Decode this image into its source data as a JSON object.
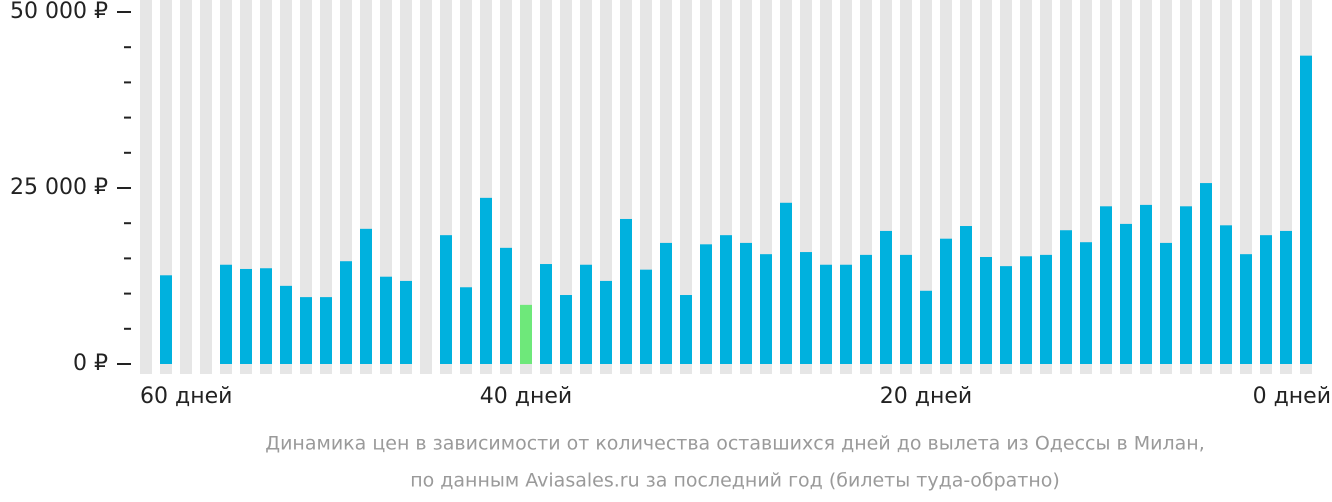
{
  "chart_data": {
    "type": "bar",
    "caption": [
      "Динамика цен в зависимости от количества оставшихся дней до вылета из Одессы в Милан,",
      "по данным Aviasales.ru за последний год (билеты туда-обратно)"
    ],
    "categories": [
      "60 дней",
      null,
      null,
      null,
      null,
      null,
      null,
      null,
      null,
      null,
      null,
      null,
      null,
      null,
      null,
      null,
      null,
      null,
      "40 дней",
      null,
      null,
      null,
      null,
      null,
      null,
      null,
      null,
      null,
      null,
      null,
      null,
      null,
      null,
      null,
      null,
      null,
      null,
      null,
      "20 дней",
      null,
      null,
      null,
      null,
      null,
      null,
      null,
      null,
      null,
      null,
      null,
      null,
      null,
      null,
      null,
      null,
      null,
      null,
      "0 дней"
    ],
    "values": [
      12600,
      null,
      null,
      14100,
      13500,
      13600,
      11100,
      9500,
      9500,
      14600,
      19200,
      12400,
      11800,
      null,
      18300,
      10900,
      23600,
      16500,
      8400,
      14200,
      9800,
      14100,
      11800,
      20600,
      13400,
      17200,
      9800,
      17000,
      18300,
      17200,
      15600,
      22900,
      15900,
      14100,
      14100,
      15500,
      18900,
      15500,
      10400,
      17800,
      19600,
      15200,
      13900,
      15300,
      15500,
      19000,
      17300,
      22400,
      19900,
      22600,
      17200,
      22400,
      25700,
      19700,
      15600,
      18300,
      18900,
      43800
    ],
    "color": "#00b1de",
    "highlight": {
      "index": 18,
      "color": "#6ee87a"
    },
    "stripe_color": "#e6e6e6",
    "ylim": [
      0,
      50000
    ],
    "yticks": [
      {
        "value": 0,
        "label": "0 ₽"
      },
      {
        "value": 25000,
        "label": "25 000 ₽"
      },
      {
        "value": 50000,
        "label": "50 000 ₽"
      }
    ],
    "minor_yticks": [
      5000,
      10000,
      15000,
      20000,
      30000,
      35000,
      40000,
      45000
    ]
  }
}
